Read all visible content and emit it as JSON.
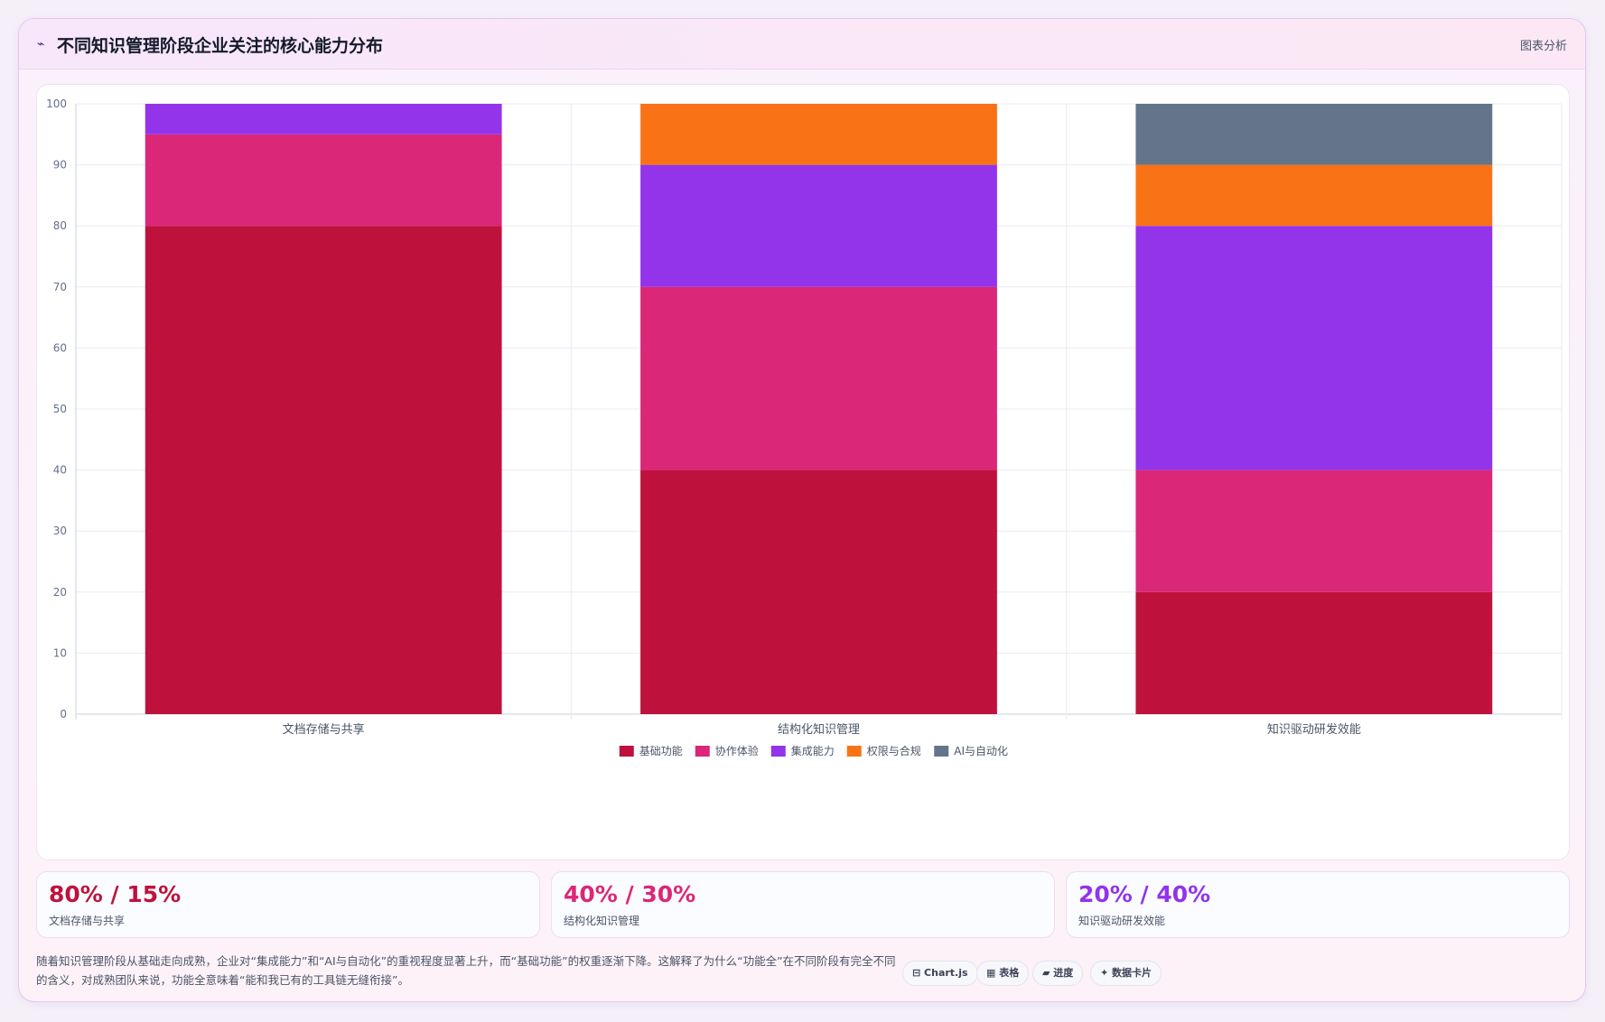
{
  "header": {
    "icon": "chart-line-icon",
    "title": "不同知识管理阶段企业关注的核心能力分布",
    "tag": "图表分析"
  },
  "chart_data": {
    "type": "bar",
    "stacked": true,
    "categories": [
      "文档存储与共享",
      "结构化知识管理",
      "知识驱动研发效能"
    ],
    "series": [
      {
        "name": "基础功能",
        "color": "#be123c",
        "values": [
          80,
          40,
          20
        ]
      },
      {
        "name": "协作体验",
        "color": "#db2777",
        "values": [
          15,
          30,
          20
        ]
      },
      {
        "name": "集成能力",
        "color": "#9333ea",
        "values": [
          5,
          20,
          40
        ]
      },
      {
        "name": "权限与合规",
        "color": "#f97316",
        "values": [
          0,
          10,
          10
        ]
      },
      {
        "name": "AI与自动化",
        "color": "#64748b",
        "values": [
          0,
          0,
          10
        ]
      }
    ],
    "ylim": [
      0,
      100
    ],
    "yticks": [
      0,
      10,
      20,
      30,
      40,
      50,
      60,
      70,
      80,
      90,
      100
    ],
    "grid": true,
    "legend": "bottom"
  },
  "stats": [
    {
      "value": "80% / 15%",
      "label": "文档存储与共享",
      "color": "#be123c"
    },
    {
      "value": "40% / 30%",
      "label": "结构化知识管理",
      "color": "#db2777"
    },
    {
      "value": "20% / 40%",
      "label": "知识驱动研发效能",
      "color": "#9333ea"
    }
  ],
  "footer": {
    "text": "随着知识管理阶段从基础走向成熟，企业对“集成能力”和“AI与自动化”的重视程度显著上升，而“基础功能”的权重逐渐下降。这解释了为什么“功能全”在不同阶段有完全不同的含义，对成熟团队来说，功能全意味着“能和我已有的工具链无缝衔接”。",
    "pills": [
      "⊟ Chart.js",
      "▦ 表格",
      "▰ 进度",
      "✦ 数据卡片"
    ]
  }
}
